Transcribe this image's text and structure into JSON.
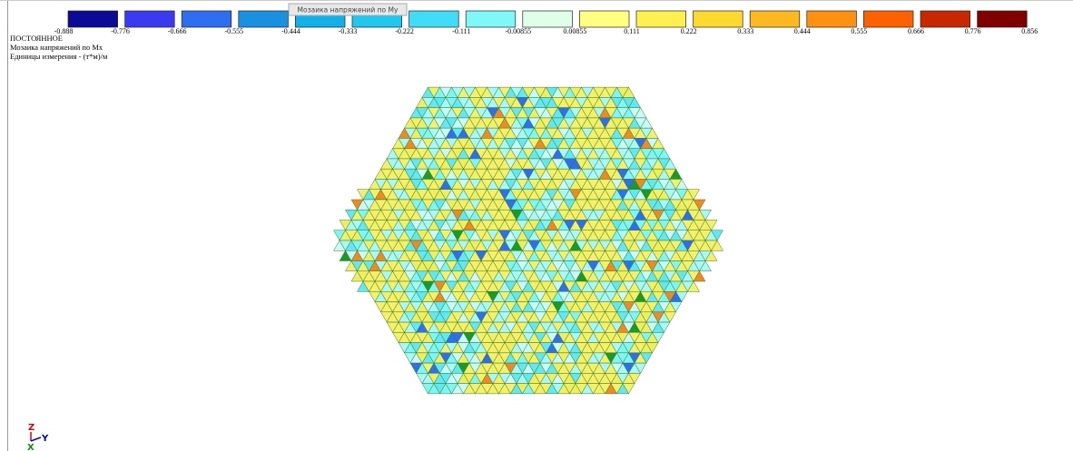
{
  "tooltip": "Мозаика напряжений по Му",
  "legend": {
    "colors": [
      "#0a0a96",
      "#3a3af0",
      "#2e6ef0",
      "#1a90e0",
      "#10b0e8",
      "#20c8f0",
      "#40dcf8",
      "#80f8fa",
      "#e0ffe8",
      "#ffff80",
      "#fff050",
      "#ffd830",
      "#ffb820",
      "#ff9010",
      "#ff6000",
      "#c82800",
      "#800000"
    ],
    "labels": [
      "-0.888",
      "-0.776",
      "-0.666",
      "-0.555",
      "-0.444",
      "-0.333",
      "-0.222",
      "-0.111",
      "-0.00855",
      "0.00855",
      "0.111",
      "0.222",
      "0.333",
      "0.444",
      "0.555",
      "0.666",
      "0.776",
      "0.856"
    ]
  },
  "info": [
    "ПОСТОЯННОЕ",
    "Мозаика напряжений по Mx",
    "Единицы измерения - (т*м)/м"
  ],
  "axes": {
    "z": "Z",
    "y": "Y",
    "x": "X"
  }
}
